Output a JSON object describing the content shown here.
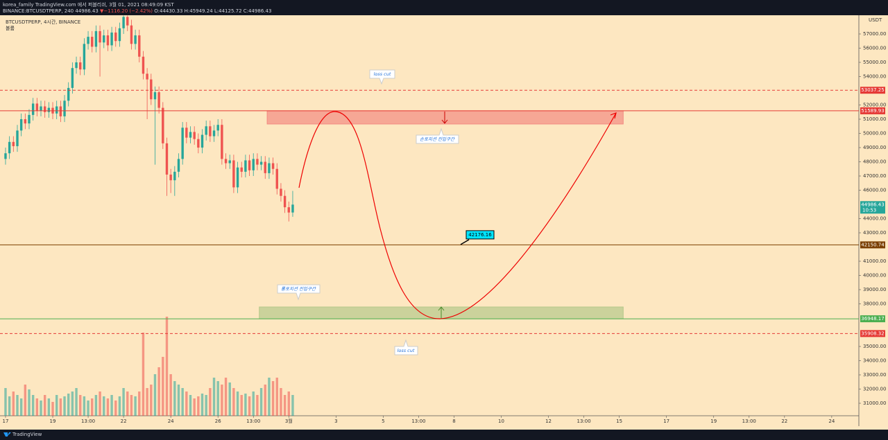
{
  "header": {
    "publisher": "korea_family TradingView.com 에서 퍼블리쉬, 3월 01, 2021 08:49:09 KST",
    "symbol": "BINANCE:BTCUSDTPERP, 240",
    "price": "44986.43",
    "change": "▼−1116.20 (−2.42%)",
    "ohlc": "O:44430.33 H:45949.24 L:44125.72 C:44986.43"
  },
  "footer": "TradingView",
  "annotations": {
    "loss_cut_top": "loss cut",
    "short_zone": "손포지션 진입구간",
    "long_zone": "롱포지션 진입구간",
    "loss_cut_bottom": "loss cut"
  },
  "chart_data": {
    "type": "candlestick",
    "title": "BTCUSDTPERP, 4시간, BINANCE",
    "volume_label": "볼륨",
    "currency": "USDT",
    "up_color": "#26a69a",
    "down_color": "#ef5350",
    "open": [
      48200,
      48600,
      49400,
      49100,
      50200,
      51000,
      50700,
      51300,
      52100,
      51600,
      51900,
      51500,
      51800,
      51400,
      51900,
      51200,
      52300,
      53200,
      54600,
      55000,
      54500,
      56300,
      56800,
      56100,
      57200,
      56400,
      56900,
      56200,
      57100,
      56500,
      57400,
      58200,
      57600,
      56300,
      56900,
      55400,
      54200,
      53800,
      52400,
      52900,
      51800,
      49300,
      47100,
      46700,
      47300,
      48200,
      50400,
      49700,
      50100,
      49600,
      49000,
      49900,
      50500,
      49800,
      50200,
      50600,
      48200,
      47900,
      48100,
      46200,
      47600,
      47300,
      48100,
      47400,
      48200,
      47800,
      48000,
      47200,
      47900,
      47500,
      46100,
      45600,
      44800,
      44430.33
    ],
    "high": [
      49000,
      49800,
      49800,
      50600,
      51400,
      51400,
      51700,
      52500,
      52500,
      52300,
      52300,
      52200,
      52200,
      52300,
      52300,
      52700,
      53600,
      55000,
      55400,
      55400,
      56700,
      57200,
      57200,
      57600,
      57600,
      57300,
      57300,
      57500,
      57500,
      57800,
      58300,
      58300,
      58000,
      57300,
      57300,
      55800,
      54600,
      54200,
      53300,
      53300,
      52200,
      49700,
      47500,
      47700,
      48600,
      50800,
      50800,
      50500,
      50500,
      50000,
      50300,
      50900,
      50900,
      50600,
      51000,
      51000,
      48600,
      48500,
      48500,
      48000,
      48000,
      48500,
      48500,
      48600,
      48600,
      48400,
      48400,
      48300,
      48300,
      47900,
      46500,
      46000,
      45200,
      45949.24
    ],
    "low": [
      47800,
      48200,
      48700,
      48700,
      49800,
      50300,
      50300,
      50900,
      51200,
      51200,
      51100,
      51100,
      51000,
      51000,
      50800,
      50800,
      51900,
      52800,
      54200,
      54100,
      54100,
      55900,
      55700,
      55700,
      54000,
      56000,
      55800,
      55800,
      56100,
      56100,
      57000,
      57200,
      55900,
      55900,
      55000,
      53800,
      51000,
      52000,
      47800,
      51400,
      48900,
      45600,
      45800,
      45600,
      46900,
      47800,
      49300,
      49300,
      49200,
      48600,
      48600,
      49500,
      49400,
      49400,
      49800,
      47800,
      47500,
      47500,
      45800,
      45800,
      46900,
      46900,
      47000,
      47000,
      47400,
      47400,
      46800,
      46800,
      47100,
      45700,
      45200,
      44400,
      43800,
      44125.72
    ],
    "close": [
      48600,
      49400,
      49100,
      50200,
      51000,
      50700,
      51300,
      52100,
      51600,
      51900,
      51500,
      51800,
      51400,
      51900,
      51200,
      52300,
      53200,
      54600,
      55000,
      54500,
      56300,
      56800,
      56100,
      57200,
      56400,
      56900,
      56200,
      57100,
      56500,
      57400,
      58200,
      57600,
      56300,
      56900,
      55400,
      54200,
      53800,
      52400,
      52900,
      51800,
      49300,
      47100,
      46700,
      47300,
      48200,
      50400,
      49700,
      50100,
      49600,
      49000,
      49900,
      50500,
      49800,
      50200,
      50600,
      48200,
      47900,
      48100,
      46200,
      47600,
      47300,
      48100,
      47400,
      48200,
      47800,
      48000,
      47200,
      47900,
      47500,
      46100,
      45600,
      44800,
      44430.33,
      44986.43
    ],
    "volume": [
      40,
      28,
      35,
      30,
      25,
      45,
      38,
      30,
      25,
      22,
      30,
      25,
      20,
      30,
      25,
      28,
      32,
      35,
      40,
      30,
      28,
      22,
      25,
      30,
      35,
      28,
      25,
      30,
      22,
      28,
      40,
      35,
      30,
      28,
      35,
      120,
      40,
      45,
      60,
      70,
      85,
      143,
      60,
      50,
      45,
      40,
      35,
      30,
      25,
      28,
      32,
      30,
      40,
      55,
      50,
      45,
      55,
      48,
      40,
      35,
      30,
      32,
      28,
      35,
      30,
      40,
      45,
      55,
      50,
      55,
      40,
      30,
      35,
      30
    ],
    "xlim": [
      -0.7,
      216.9
    ],
    "xticks": [
      {
        "value": 0,
        "label": "17"
      },
      {
        "value": 12,
        "label": "19"
      },
      {
        "value": 21,
        "label": "13:00"
      },
      {
        "value": 30,
        "label": "22"
      },
      {
        "value": 42,
        "label": "24"
      },
      {
        "value": 54,
        "label": "26"
      },
      {
        "value": 63,
        "label": "13:00"
      },
      {
        "value": 72,
        "label": "3월"
      },
      {
        "value": 84,
        "label": "3"
      },
      {
        "value": 96,
        "label": "5"
      },
      {
        "value": 105,
        "label": "13:00"
      },
      {
        "value": 114,
        "label": "8"
      },
      {
        "value": 126,
        "label": "10"
      },
      {
        "value": 138,
        "label": "12"
      },
      {
        "value": 147,
        "label": "13:00"
      },
      {
        "value": 156,
        "label": "15"
      },
      {
        "value": 168,
        "label": "17"
      },
      {
        "value": 180,
        "label": "19"
      },
      {
        "value": 189,
        "label": "13:00"
      },
      {
        "value": 198,
        "label": "22"
      },
      {
        "value": 210,
        "label": "24"
      }
    ],
    "ylim": [
      30122,
      58317
    ],
    "yticks": [
      {
        "value": 31000,
        "label": "31000.00"
      },
      {
        "value": 32000,
        "label": "32000.00"
      },
      {
        "value": 33000,
        "label": "33000.00"
      },
      {
        "value": 34000,
        "label": "34000.00"
      },
      {
        "value": 35000,
        "label": "35000.00"
      },
      {
        "value": 38000,
        "label": "38000.00"
      },
      {
        "value": 39000,
        "label": "39000.00"
      },
      {
        "value": 40000,
        "label": "40000.00"
      },
      {
        "value": 41000,
        "label": "41000.00"
      },
      {
        "value": 43000,
        "label": "43000.00"
      },
      {
        "value": 44000,
        "label": "44000.00"
      },
      {
        "value": 46000,
        "label": "46000.00"
      },
      {
        "value": 47000,
        "label": "47000.00"
      },
      {
        "value": 48000,
        "label": "48000.00"
      },
      {
        "value": 49000,
        "label": "49000.00"
      },
      {
        "value": 50000,
        "label": "50000.00"
      },
      {
        "value": 51000,
        "label": "51000.00"
      },
      {
        "value": 52000,
        "label": "52000.00"
      },
      {
        "value": 54000,
        "label": "54000.00"
      },
      {
        "value": 55000,
        "label": "55000.00"
      },
      {
        "value": 56000,
        "label": "56000.00"
      },
      {
        "value": 57000,
        "label": "57000.00"
      }
    ],
    "last_price": {
      "value": 44986.43,
      "countdown": "10:53",
      "color": "#26a69a"
    },
    "levels": [
      {
        "value": 53037.25,
        "color": "#e53935",
        "dashed": true
      },
      {
        "value": 51589.93,
        "color": "#e53935",
        "dashed": false
      },
      {
        "value": 42150.74,
        "color": "#7b3f00",
        "dashed": false
      },
      {
        "value": 36948.17,
        "color": "#4caf50",
        "dashed": false
      },
      {
        "value": 35908.32,
        "color": "#e53935",
        "dashed": true
      }
    ],
    "zones": [
      {
        "top": 51589.93,
        "bottom": 50660,
        "start": 66.5,
        "end": 157,
        "color": "#f28b82"
      },
      {
        "top": 37780,
        "bottom": 36948.17,
        "start": 64.5,
        "end": 157,
        "color": "#b5c98a"
      }
    ],
    "price_note": 42176.16
  }
}
